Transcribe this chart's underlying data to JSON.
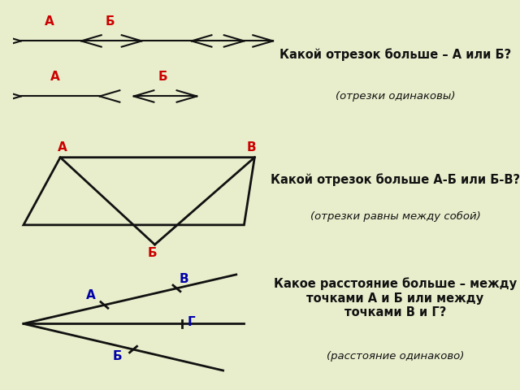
{
  "bg_color": "#e8eecc",
  "panel1_bg": "#ffffff",
  "panel2_bg": "#c8dce8",
  "panel3_bg": "#c8dce8",
  "text_bg": "#e8eecc",
  "title1": "Какой отрезок больше – А или Б?",
  "sub1": "(отрезки одинаковы)",
  "title2": "Какой отрезок больше А-Б или Б-В?",
  "sub2": "(отрезки равны между собой)",
  "title3": "Какое расстояние больше – между\nточками А и Б или между\nточками В и Г?",
  "sub3": "(расстояние одинаково)",
  "red": "#cc0000",
  "blue": "#0000aa",
  "black": "#111111",
  "tf": 10.5,
  "sf": 9.5,
  "lf": 11
}
